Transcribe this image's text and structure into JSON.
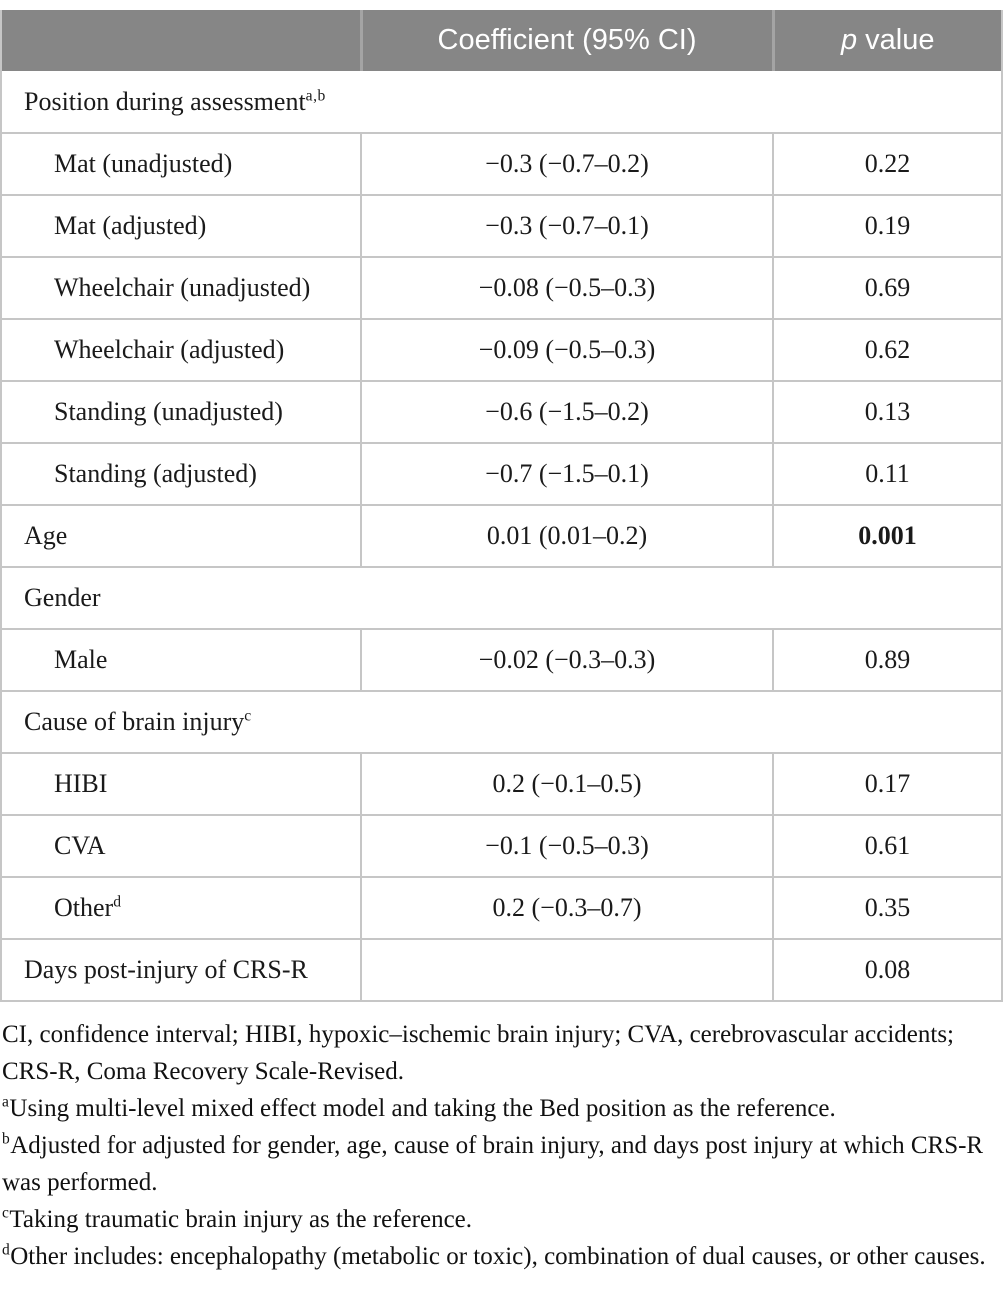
{
  "header": {
    "coefficient": "Coefficient (95% CI)",
    "p_italic": "p",
    "p_rest": " value"
  },
  "rows": [
    {
      "label": "Position during assessment",
      "sup": "a,b"
    },
    {
      "label": "Mat (unadjusted)",
      "coef": "−0.3 (−0.7–0.2)",
      "p": "0.22"
    },
    {
      "label": "Mat (adjusted)",
      "coef": "−0.3 (−0.7–0.1)",
      "p": "0.19"
    },
    {
      "label": "Wheelchair (unadjusted)",
      "coef": "−0.08 (−0.5–0.3)",
      "p": "0.69"
    },
    {
      "label": "Wheelchair (adjusted)",
      "coef": "−0.09 (−0.5–0.3)",
      "p": "0.62"
    },
    {
      "label": "Standing (unadjusted)",
      "coef": "−0.6 (−1.5–0.2)",
      "p": "0.13"
    },
    {
      "label": "Standing (adjusted)",
      "coef": "−0.7 (−1.5–0.1)",
      "p": "0.11"
    },
    {
      "label": "Age",
      "coef": "0.01 (0.01–0.2)",
      "p": "0.001"
    },
    {
      "label": "Gender"
    },
    {
      "label": "Male",
      "coef": "−0.02 (−0.3–0.3)",
      "p": "0.89"
    },
    {
      "label": "Cause of brain injury",
      "sup": "c"
    },
    {
      "label": "HIBI",
      "coef": "0.2 (−0.1–0.5)",
      "p": "0.17"
    },
    {
      "label": "CVA",
      "coef": "−0.1 (−0.5–0.3)",
      "p": "0.61"
    },
    {
      "label": "Other",
      "sup": "d",
      "coef": "0.2 (−0.3–0.7)",
      "p": "0.35"
    },
    {
      "label": "Days post-injury of CRS-R",
      "coef": "",
      "p": "0.08"
    }
  ],
  "footnotes": [
    {
      "sup": "",
      "text": "CI, confidence interval; HIBI, hypoxic–ischemic brain injury; CVA, cerebrovascular accidents; CRS-R, Coma Recovery Scale-Revised."
    },
    {
      "sup": "a",
      "text": "Using multi-level mixed effect model and taking the Bed position as the reference."
    },
    {
      "sup": "b",
      "text": "Adjusted for adjusted for gender, age, cause of brain injury, and days post injury at which CRS-R was performed."
    },
    {
      "sup": "c",
      "text": "Taking traumatic brain injury as the reference."
    },
    {
      "sup": "d",
      "text": "Other includes: encephalopathy (metabolic or toxic), combination of dual causes, or other causes."
    }
  ],
  "colors": {
    "header_bg": "#868686",
    "header_text": "#ffffff",
    "header_divider": "#a4a4a4",
    "row_border": "#c6c6c6",
    "body_text": "#1a1a1a"
  }
}
